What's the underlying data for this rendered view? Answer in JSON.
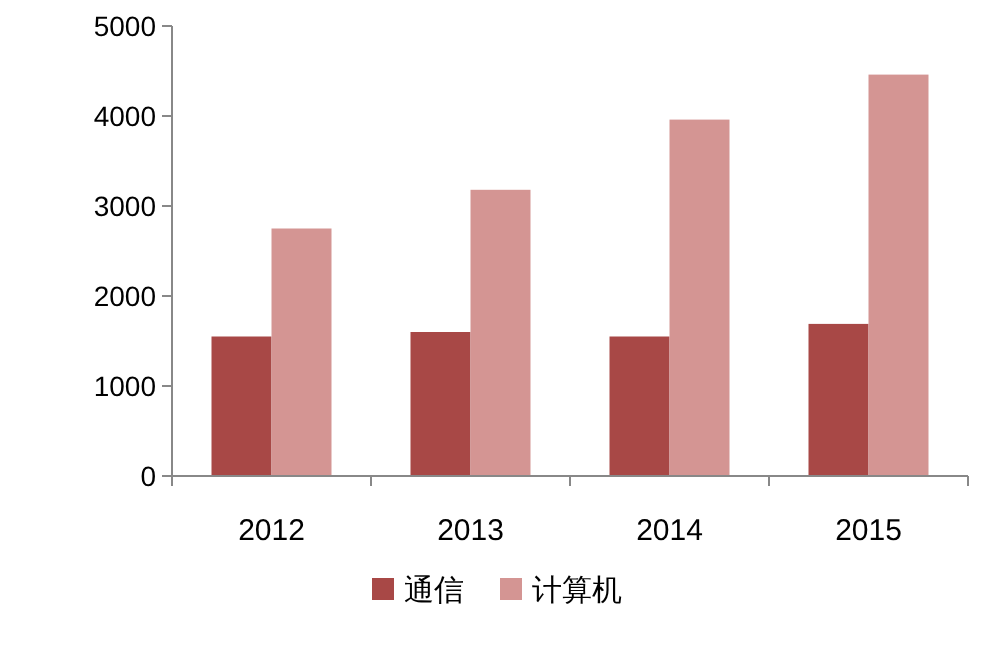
{
  "chart_data": {
    "type": "bar",
    "categories": [
      "2012",
      "2013",
      "2014",
      "2015"
    ],
    "series": [
      {
        "name": "通信",
        "color": "#a84846",
        "values": [
          1550,
          1600,
          1550,
          1690
        ]
      },
      {
        "name": "计算机",
        "color": "#d49593",
        "values": [
          2750,
          3180,
          3960,
          4460
        ]
      }
    ],
    "ylim": [
      0,
      5000
    ],
    "yticks": [
      0,
      1000,
      2000,
      3000,
      4000,
      5000
    ],
    "grid": false,
    "legend": "bottom"
  }
}
